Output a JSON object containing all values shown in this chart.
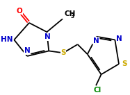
{
  "bg_color": "#ffffff",
  "atom_colors": {
    "N": "#0000cc",
    "O": "#ff0000",
    "S": "#ccaa00",
    "Cl": "#008800"
  },
  "bond_color": "#000000",
  "figsize": [
    1.87,
    1.37
  ],
  "dpi": 100,
  "font_size": 7.5,
  "lw": 1.3
}
